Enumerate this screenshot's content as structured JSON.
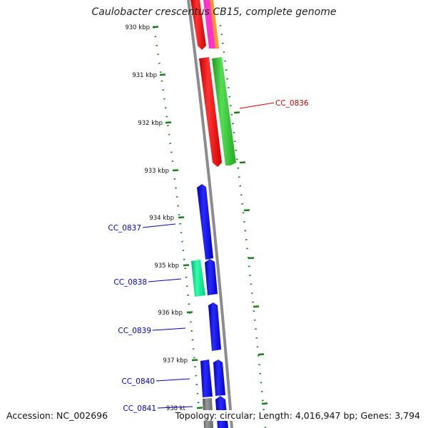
{
  "title": "Caulobacter crescentus CB15, complete genome",
  "accession_text": "Accession: NC_002696",
  "summary_text": "Topology: circular; Length: 4,016,947 bp; Genes: 3,794",
  "colors": {
    "backbone": "#8c8c8c",
    "tick": "#1a7f1a",
    "red": "#ff0000",
    "green": "#33cc33",
    "blue": "#0000ff",
    "teal": "#00ee99",
    "orange": "#ff8800",
    "magenta": "#ff00cc",
    "gray": "#777777",
    "label_red": "#cc0000",
    "label_blue": "#0000cc"
  },
  "ruler": [
    {
      "label": "930 kbp"
    },
    {
      "label": "931 kbp"
    },
    {
      "label": "932 kbp"
    },
    {
      "label": "933 kbp"
    },
    {
      "label": "934 kbp"
    },
    {
      "label": "935 kbp"
    },
    {
      "label": "936 kbp"
    },
    {
      "label": "937 kbp"
    },
    {
      "label": "938 kt"
    }
  ],
  "gene_labels": [
    {
      "name": "CC_0836",
      "strand": "forward"
    },
    {
      "name": "CC_0837",
      "strand": "reverse"
    },
    {
      "name": "CC_0838",
      "strand": "reverse"
    },
    {
      "name": "CC_0839",
      "strand": "reverse"
    },
    {
      "name": "CC_0840",
      "strand": "reverse"
    },
    {
      "name": "CC_0841",
      "strand": "reverse"
    }
  ]
}
